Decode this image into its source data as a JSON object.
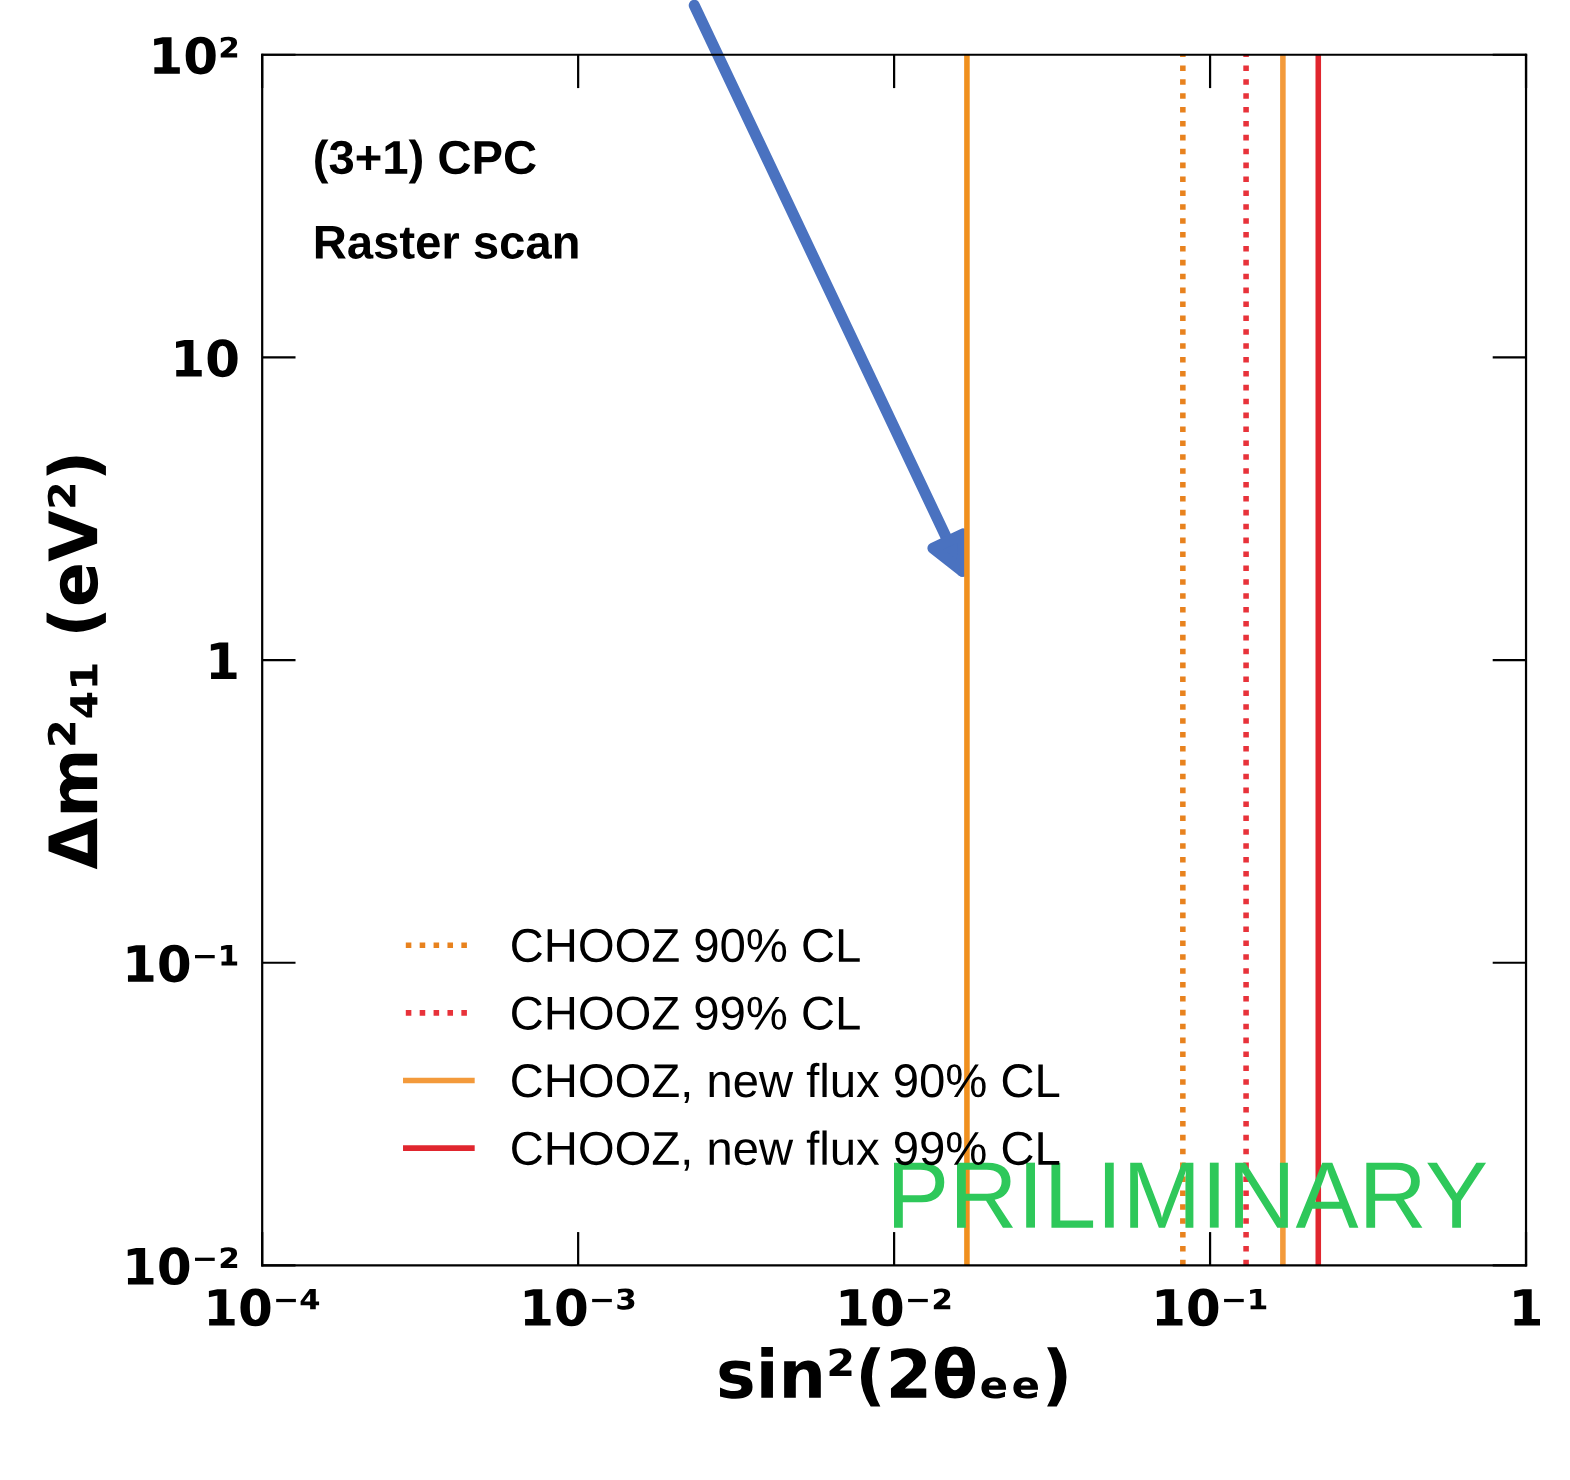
{
  "chart_data": {
    "type": "line",
    "xlabel": "sin²(2θₑₑ)",
    "ylabel": "Δm²₄₁ (eV²)",
    "log": "xy",
    "xlim": [
      0.0001,
      1
    ],
    "ylim": [
      0.01,
      100
    ],
    "xticks": [
      {
        "value": 0.0001,
        "label": "10⁻⁴"
      },
      {
        "value": 0.001,
        "label": "10⁻³"
      },
      {
        "value": 0.01,
        "label": "10⁻²"
      },
      {
        "value": 0.1,
        "label": "10⁻¹"
      },
      1
    ],
    "yticks": [
      {
        "value": 0.01,
        "label": "10⁻²"
      },
      {
        "value": 0.1,
        "label": "10⁻¹"
      },
      1,
      10,
      {
        "value": 100,
        "label": "10²"
      }
    ],
    "grid": false,
    "legend": "bottom left",
    "marker": "none",
    "series": [
      {
        "name": "CHOOZ 90% CL",
        "color": "#e8821e",
        "line_style": "dotted",
        "x": [
          0.082,
          0.082
        ],
        "values": [
          0.01,
          100
        ]
      },
      {
        "name": "CHOOZ 99% CL",
        "color": "#e8323a",
        "line_style": "dotted",
        "x": [
          0.13,
          0.13
        ],
        "values": [
          0.01,
          100
        ]
      },
      {
        "name": "CHOOZ, new flux 90% CL",
        "color": "#f39a3b",
        "line_style": "solid",
        "x": [
          0.17,
          0.17
        ],
        "values": [
          0.01,
          100
        ]
      },
      {
        "name": "CHOOZ, new flux 99% CL",
        "color": "#e0262e",
        "line_style": "solid",
        "x": [
          0.22,
          0.22
        ],
        "values": [
          0.01,
          100
        ]
      }
    ],
    "ref_lines": [
      {
        "axis": "x",
        "value": 0.017,
        "color": "#f0901e",
        "line_style": "solid"
      }
    ],
    "annotations": [
      "(3+1) CPC",
      "Raster scan",
      "PRILIMINARY"
    ]
  }
}
